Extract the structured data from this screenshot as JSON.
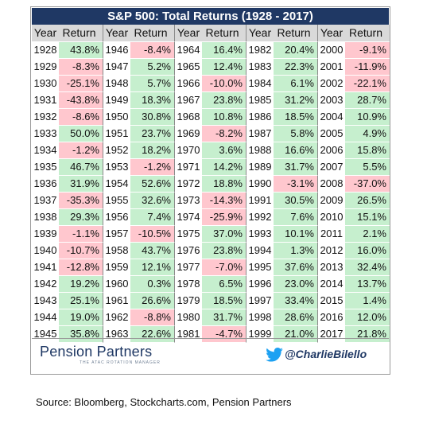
{
  "chart_data": {
    "type": "table",
    "title": "S&P 500: Total Returns (1928 - 2017)",
    "column_headers": [
      "Year",
      "Return"
    ],
    "positive_color": "#c6efce",
    "negative_color": "#ffc7ce",
    "header_color": "#d9d9d9",
    "title_color": "#1f3864",
    "columns": [
      [
        [
          "1928",
          "43.8%"
        ],
        [
          "1929",
          "-8.3%"
        ],
        [
          "1930",
          "-25.1%"
        ],
        [
          "1931",
          "-43.8%"
        ],
        [
          "1932",
          "-8.6%"
        ],
        [
          "1933",
          "50.0%"
        ],
        [
          "1934",
          "-1.2%"
        ],
        [
          "1935",
          "46.7%"
        ],
        [
          "1936",
          "31.9%"
        ],
        [
          "1937",
          "-35.3%"
        ],
        [
          "1938",
          "29.3%"
        ],
        [
          "1939",
          "-1.1%"
        ],
        [
          "1940",
          "-10.7%"
        ],
        [
          "1941",
          "-12.8%"
        ],
        [
          "1942",
          "19.2%"
        ],
        [
          "1943",
          "25.1%"
        ],
        [
          "1944",
          "19.0%"
        ],
        [
          "1945",
          "35.8%"
        ]
      ],
      [
        [
          "1946",
          "-8.4%"
        ],
        [
          "1947",
          "5.2%"
        ],
        [
          "1948",
          "5.7%"
        ],
        [
          "1949",
          "18.3%"
        ],
        [
          "1950",
          "30.8%"
        ],
        [
          "1951",
          "23.7%"
        ],
        [
          "1952",
          "18.2%"
        ],
        [
          "1953",
          "-1.2%"
        ],
        [
          "1954",
          "52.6%"
        ],
        [
          "1955",
          "32.6%"
        ],
        [
          "1956",
          "7.4%"
        ],
        [
          "1957",
          "-10.5%"
        ],
        [
          "1958",
          "43.7%"
        ],
        [
          "1959",
          "12.1%"
        ],
        [
          "1960",
          "0.3%"
        ],
        [
          "1961",
          "26.6%"
        ],
        [
          "1962",
          "-8.8%"
        ],
        [
          "1963",
          "22.6%"
        ]
      ],
      [
        [
          "1964",
          "16.4%"
        ],
        [
          "1965",
          "12.4%"
        ],
        [
          "1966",
          "-10.0%"
        ],
        [
          "1967",
          "23.8%"
        ],
        [
          "1968",
          "10.8%"
        ],
        [
          "1969",
          "-8.2%"
        ],
        [
          "1970",
          "3.6%"
        ],
        [
          "1971",
          "14.2%"
        ],
        [
          "1972",
          "18.8%"
        ],
        [
          "1973",
          "-14.3%"
        ],
        [
          "1974",
          "-25.9%"
        ],
        [
          "1975",
          "37.0%"
        ],
        [
          "1976",
          "23.8%"
        ],
        [
          "1977",
          "-7.0%"
        ],
        [
          "1978",
          "6.5%"
        ],
        [
          "1979",
          "18.5%"
        ],
        [
          "1980",
          "31.7%"
        ],
        [
          "1981",
          "-4.7%"
        ]
      ],
      [
        [
          "1982",
          "20.4%"
        ],
        [
          "1983",
          "22.3%"
        ],
        [
          "1984",
          "6.1%"
        ],
        [
          "1985",
          "31.2%"
        ],
        [
          "1986",
          "18.5%"
        ],
        [
          "1987",
          "5.8%"
        ],
        [
          "1988",
          "16.6%"
        ],
        [
          "1989",
          "31.7%"
        ],
        [
          "1990",
          "-3.1%"
        ],
        [
          "1991",
          "30.5%"
        ],
        [
          "1992",
          "7.6%"
        ],
        [
          "1993",
          "10.1%"
        ],
        [
          "1994",
          "1.3%"
        ],
        [
          "1995",
          "37.6%"
        ],
        [
          "1996",
          "23.0%"
        ],
        [
          "1997",
          "33.4%"
        ],
        [
          "1998",
          "28.6%"
        ],
        [
          "1999",
          "21.0%"
        ]
      ],
      [
        [
          "2000",
          "-9.1%"
        ],
        [
          "2001",
          "-11.9%"
        ],
        [
          "2002",
          "-22.1%"
        ],
        [
          "2003",
          "28.7%"
        ],
        [
          "2004",
          "10.9%"
        ],
        [
          "2005",
          "4.9%"
        ],
        [
          "2006",
          "15.8%"
        ],
        [
          "2007",
          "5.5%"
        ],
        [
          "2008",
          "-37.0%"
        ],
        [
          "2009",
          "26.5%"
        ],
        [
          "2010",
          "15.1%"
        ],
        [
          "2011",
          "2.1%"
        ],
        [
          "2012",
          "16.0%"
        ],
        [
          "2013",
          "32.4%"
        ],
        [
          "2014",
          "13.7%"
        ],
        [
          "2015",
          "1.4%"
        ],
        [
          "2016",
          "12.0%"
        ],
        [
          "2017",
          "21.8%"
        ]
      ]
    ]
  },
  "footer": {
    "logo_text": "Pension Partners",
    "logo_subtext": "THE ATAC ROTATION MANAGER",
    "handle": "@CharlieBilello",
    "bird_icon": "twitter-bird-icon",
    "bird_color": "#1da1f2"
  },
  "source_note": "Source: Bloomberg, Stockcharts.com, Pension Partners"
}
